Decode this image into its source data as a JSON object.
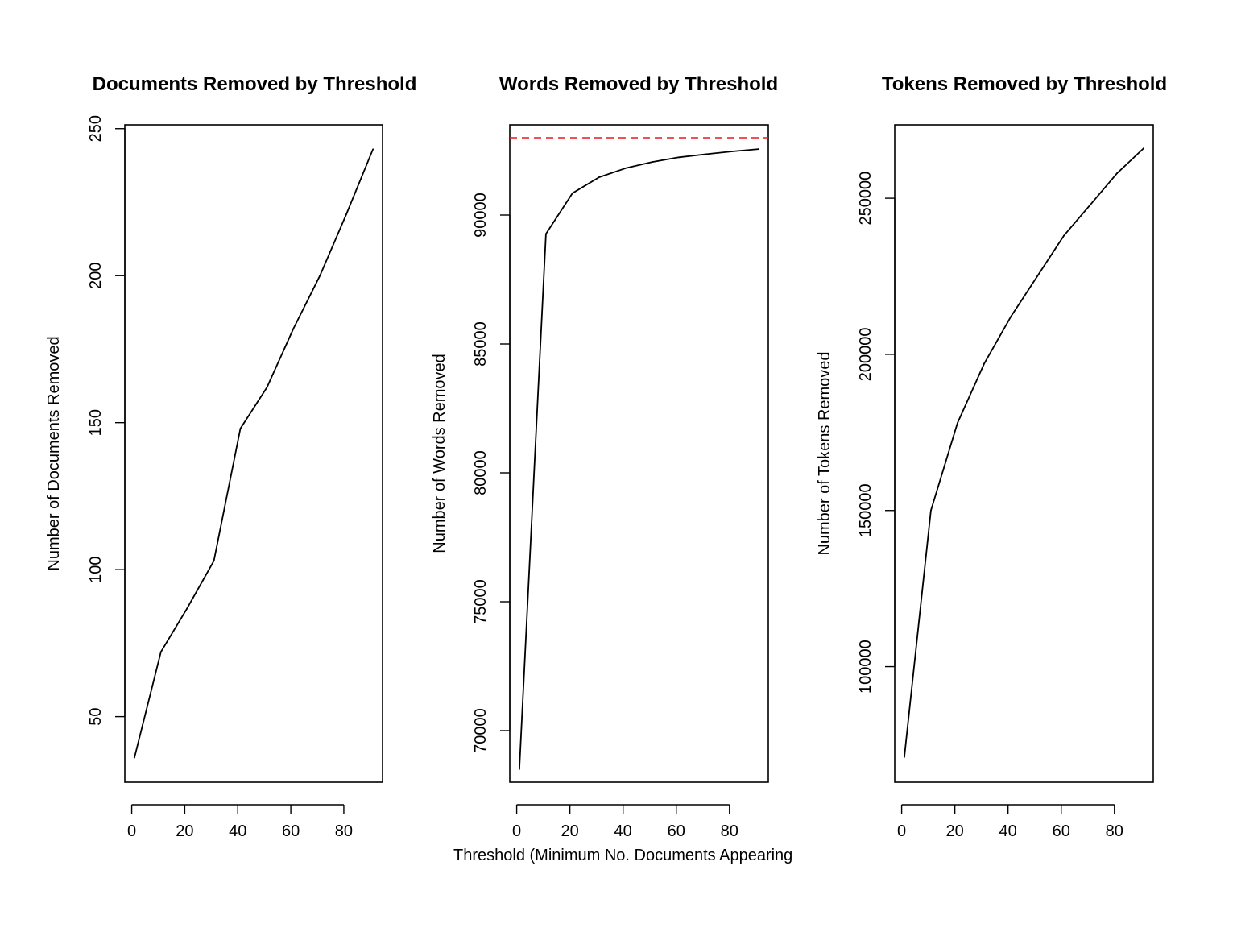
{
  "figure": {
    "xlabel": "Threshold (Minimum No. Documents Appearing"
  },
  "chart_data": [
    {
      "type": "line",
      "title": "Documents Removed by Threshold",
      "xlabel": "",
      "ylabel": "Number of Documents Removed",
      "x": [
        1,
        11,
        21,
        31,
        41,
        51,
        61,
        71,
        81,
        91
      ],
      "series": [
        {
          "values": [
            36,
            72,
            87,
            103,
            148,
            162,
            182,
            200,
            221,
            243
          ],
          "color": "#000000"
        }
      ],
      "xlim": [
        -2.6,
        94.6
      ],
      "ylim": [
        27.7,
        251.3
      ],
      "xticks": [
        0,
        20,
        40,
        60,
        80
      ],
      "yticks": [
        50,
        100,
        150,
        200,
        250
      ],
      "grid": false
    },
    {
      "type": "line",
      "title": "Words Removed by Threshold",
      "xlabel": "",
      "ylabel": "Number of Words Removed",
      "x": [
        1,
        11,
        21,
        31,
        41,
        51,
        61,
        71,
        81,
        91
      ],
      "series": [
        {
          "values": [
            68500,
            89270,
            90850,
            91470,
            91820,
            92060,
            92240,
            92360,
            92470,
            92560
          ],
          "color": "#000000"
        }
      ],
      "reference_lines": [
        {
          "axis": "y",
          "value": 93000,
          "style": "dashed",
          "color": "#e8191c"
        }
      ],
      "xlim": [
        -2.6,
        94.6
      ],
      "ylim": [
        68000,
        93500
      ],
      "xticks": [
        0,
        20,
        40,
        60,
        80
      ],
      "yticks": [
        70000,
        75000,
        80000,
        85000,
        90000
      ],
      "grid": false
    },
    {
      "type": "line",
      "title": "Tokens Removed by Threshold",
      "xlabel": "",
      "ylabel": "Number of Tokens Removed",
      "x": [
        1,
        11,
        21,
        31,
        41,
        51,
        61,
        71,
        81,
        91
      ],
      "series": [
        {
          "values": [
            71000,
            150000,
            178000,
            197000,
            212000,
            225000,
            238000,
            248000,
            258000,
            266000
          ],
          "color": "#000000"
        }
      ],
      "xlim": [
        -2.6,
        94.6
      ],
      "ylim": [
        63000,
        273500
      ],
      "xticks": [
        0,
        20,
        40,
        60,
        80
      ],
      "yticks": [
        100000,
        150000,
        200000,
        250000
      ],
      "grid": false
    }
  ]
}
